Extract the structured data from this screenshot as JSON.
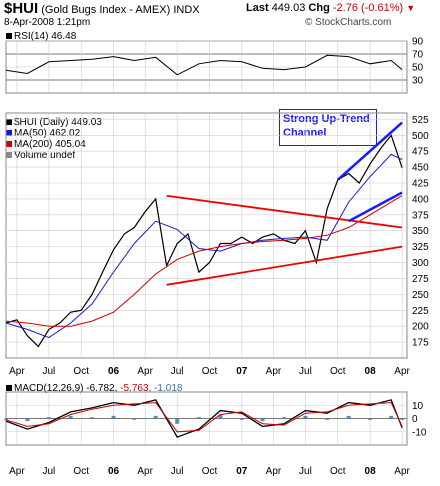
{
  "header": {
    "symbol": "$HUI",
    "name": "(Gold Bugs Index - AMEX)",
    "exchange": "INDX",
    "date": "8-Apr-2008 1:21pm",
    "brand": "© StockCharts.com",
    "last_label": "Last",
    "last_value": "449.03",
    "chg_label": "Chg",
    "chg_value": "-2.76 (-0.61%)",
    "chg_arrow": "▼"
  },
  "colors": {
    "price": "#000000",
    "ma50": "#1a1acc",
    "ma200": "#cc0000",
    "trend_red": "#ee0000",
    "trend_blue": "#1a1aff",
    "grid": "#cccccc",
    "macd_hist": "#3b6fa0"
  },
  "chart_data": [
    {
      "type": "line",
      "panel": "rsi",
      "label": "RSI(14) 46.48",
      "ylim": [
        10,
        90
      ],
      "y_ticks": [
        30,
        50,
        70,
        90
      ],
      "reference_lines": [
        30,
        70
      ],
      "series": [
        {
          "name": "RSI(14)",
          "x": [
            "2005-03",
            "2005-05",
            "2005-07",
            "2005-09",
            "2005-11",
            "2006-01",
            "2006-03",
            "2006-05",
            "2006-07",
            "2006-09",
            "2006-11",
            "2007-01",
            "2007-03",
            "2007-05",
            "2007-07",
            "2007-09",
            "2007-11",
            "2008-01",
            "2008-03",
            "2008-04"
          ],
          "values": [
            45,
            40,
            58,
            60,
            62,
            66,
            60,
            65,
            38,
            55,
            60,
            58,
            48,
            46,
            50,
            68,
            66,
            55,
            60,
            46
          ]
        }
      ]
    },
    {
      "type": "line",
      "panel": "price",
      "legend": [
        {
          "text": "$HUI (Daily) 449.03",
          "color": "#000000"
        },
        {
          "text": "MA(50) 462.02",
          "color": "#1a1acc"
        },
        {
          "text": "MA(200) 405.04",
          "color": "#cc0000"
        },
        {
          "text": "Volume undef",
          "color": "#888888"
        }
      ],
      "ylim": [
        150,
        535
      ],
      "y_ticks": [
        175,
        200,
        225,
        250,
        275,
        300,
        325,
        350,
        375,
        400,
        425,
        450,
        475,
        500,
        525
      ],
      "annotation": "Strong Up-Trend Channel",
      "series": [
        {
          "name": "$HUI",
          "x": [
            "2005-03",
            "2005-04",
            "2005-05",
            "2005-06",
            "2005-07",
            "2005-08",
            "2005-09",
            "2005-10",
            "2005-11",
            "2005-12",
            "2006-01",
            "2006-02",
            "2006-03",
            "2006-04",
            "2006-05",
            "2006-06",
            "2006-07",
            "2006-08",
            "2006-09",
            "2006-10",
            "2006-11",
            "2006-12",
            "2007-01",
            "2007-02",
            "2007-03",
            "2007-04",
            "2007-05",
            "2007-06",
            "2007-07",
            "2007-08",
            "2007-09",
            "2007-10",
            "2007-11",
            "2007-12",
            "2008-01",
            "2008-02",
            "2008-03",
            "2008-04"
          ],
          "values": [
            205,
            210,
            185,
            168,
            195,
            205,
            222,
            225,
            250,
            285,
            320,
            345,
            355,
            380,
            400,
            295,
            330,
            345,
            285,
            300,
            330,
            330,
            340,
            330,
            340,
            345,
            335,
            330,
            350,
            300,
            385,
            430,
            440,
            425,
            455,
            480,
            500,
            449
          ]
        },
        {
          "name": "MA(50)",
          "x": [
            "2005-03",
            "2005-05",
            "2005-07",
            "2005-09",
            "2005-11",
            "2006-01",
            "2006-03",
            "2006-05",
            "2006-07",
            "2006-09",
            "2006-11",
            "2007-01",
            "2007-03",
            "2007-05",
            "2007-07",
            "2007-09",
            "2007-11",
            "2008-01",
            "2008-03",
            "2008-04"
          ],
          "values": [
            205,
            195,
            182,
            205,
            235,
            285,
            330,
            365,
            352,
            322,
            318,
            330,
            335,
            338,
            340,
            335,
            395,
            435,
            470,
            462
          ]
        },
        {
          "name": "MA(200)",
          "x": [
            "2005-03",
            "2005-05",
            "2005-07",
            "2005-09",
            "2005-11",
            "2006-01",
            "2006-03",
            "2006-05",
            "2006-07",
            "2006-09",
            "2006-11",
            "2007-01",
            "2007-03",
            "2007-05",
            "2007-07",
            "2007-09",
            "2007-11",
            "2008-01",
            "2008-03",
            "2008-04"
          ],
          "values": [
            208,
            205,
            200,
            200,
            208,
            222,
            250,
            282,
            305,
            318,
            325,
            330,
            333,
            335,
            338,
            343,
            355,
            375,
            395,
            405
          ]
        }
      ],
      "trend_lines": [
        {
          "color": "red",
          "from": {
            "x": "2006-06",
            "y": 405
          },
          "to": {
            "x": "2008-04",
            "y": 355
          }
        },
        {
          "color": "red",
          "from": {
            "x": "2006-06",
            "y": 265
          },
          "to": {
            "x": "2008-04",
            "y": 325
          }
        },
        {
          "color": "blue",
          "from": {
            "x": "2007-10",
            "y": 430
          },
          "to": {
            "x": "2008-04",
            "y": 520
          }
        },
        {
          "color": "blue",
          "from": {
            "x": "2007-11",
            "y": 365
          },
          "to": {
            "x": "2008-04",
            "y": 410
          }
        }
      ]
    },
    {
      "type": "line",
      "panel": "macd",
      "label": "MACD(12,26,9) -6.782, -5.763, -1.018",
      "label_parts": [
        "MACD(12,26,9)",
        "-6.782,",
        "-5.763,",
        "-1.018"
      ],
      "ylim": [
        -20,
        20
      ],
      "y_ticks": [
        -10,
        0,
        10
      ],
      "series": [
        {
          "name": "MACD",
          "x": [
            "2005-03",
            "2005-05",
            "2005-07",
            "2005-09",
            "2005-11",
            "2006-01",
            "2006-03",
            "2006-05",
            "2006-07",
            "2006-09",
            "2006-11",
            "2007-01",
            "2007-03",
            "2007-05",
            "2007-07",
            "2007-09",
            "2007-11",
            "2008-01",
            "2008-03",
            "2008-04"
          ],
          "values": [
            -2,
            -8,
            -3,
            5,
            8,
            12,
            10,
            14,
            -14,
            -8,
            6,
            4,
            -6,
            -4,
            6,
            4,
            12,
            10,
            14,
            -7
          ]
        },
        {
          "name": "Signal",
          "x": [
            "2005-03",
            "2005-05",
            "2005-07",
            "2005-09",
            "2005-11",
            "2006-01",
            "2006-03",
            "2006-05",
            "2006-07",
            "2006-09",
            "2006-11",
            "2007-01",
            "2007-03",
            "2007-05",
            "2007-07",
            "2007-09",
            "2007-11",
            "2008-01",
            "2008-03",
            "2008-04"
          ],
          "values": [
            -1,
            -6,
            -4,
            3,
            7,
            10,
            11,
            12,
            -10,
            -9,
            3,
            5,
            -4,
            -5,
            4,
            5,
            10,
            11,
            12,
            -6
          ]
        }
      ]
    }
  ],
  "x_axis": {
    "labels": [
      "Apr",
      "Jul",
      "Oct",
      "06",
      "Apr",
      "Jul",
      "Oct",
      "07",
      "Apr",
      "Jul",
      "Oct",
      "08",
      "Apr"
    ],
    "dates": [
      "2005-04",
      "2005-07",
      "2005-10",
      "2006-01",
      "2006-04",
      "2006-07",
      "2006-10",
      "2007-01",
      "2007-04",
      "2007-07",
      "2007-10",
      "2008-01",
      "2008-04"
    ]
  }
}
